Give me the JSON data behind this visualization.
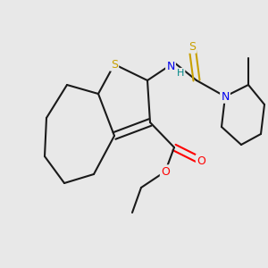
{
  "background_color": "#e8e8e8",
  "bond_color": "#1a1a1a",
  "atom_colors": {
    "S": "#c8a000",
    "O": "#ff0000",
    "N": "#0000ee",
    "H": "#008888",
    "C": "#1a1a1a"
  },
  "figsize": [
    3.0,
    3.0
  ],
  "dpi": 100
}
